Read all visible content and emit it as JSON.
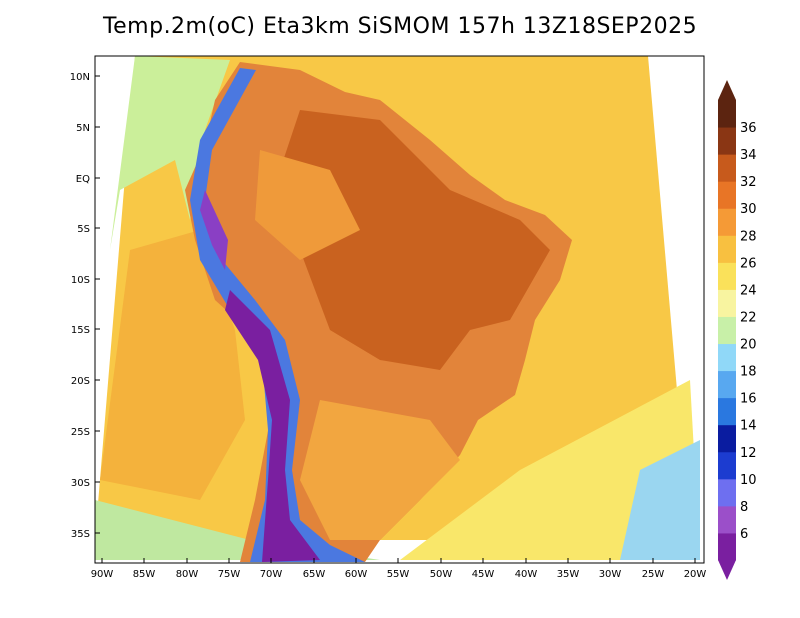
{
  "title": "Temp.2m(oC) Eta3km SiSMOM 157h 13Z18SEP2025",
  "latitude_labels": [
    "10N",
    "5N",
    "EQ",
    "5S",
    "10S",
    "15S",
    "20S",
    "25S",
    "30S",
    "35S"
  ],
  "longitude_labels": [
    "90W",
    "85W",
    "80W",
    "75W",
    "70W",
    "65W",
    "60W",
    "55W",
    "50W",
    "45W",
    "40W",
    "35W",
    "30W",
    "25W",
    "20W"
  ],
  "colorbar": {
    "labels": [
      "6",
      "8",
      "10",
      "12",
      "14",
      "16",
      "18",
      "20",
      "22",
      "24",
      "26",
      "28",
      "30",
      "32",
      "34",
      "36"
    ],
    "colors": [
      "#7a1fa0",
      "#9b4fc9",
      "#6e6ff0",
      "#1c3cd0",
      "#0a1ca0",
      "#2a78e0",
      "#58a8f0",
      "#90d8f8",
      "#c8f0a8",
      "#f8f4a0",
      "#fae15a",
      "#f8c040",
      "#f59a36",
      "#e87526",
      "#c75a1c",
      "#8a3614",
      "#5c2410"
    ]
  }
}
